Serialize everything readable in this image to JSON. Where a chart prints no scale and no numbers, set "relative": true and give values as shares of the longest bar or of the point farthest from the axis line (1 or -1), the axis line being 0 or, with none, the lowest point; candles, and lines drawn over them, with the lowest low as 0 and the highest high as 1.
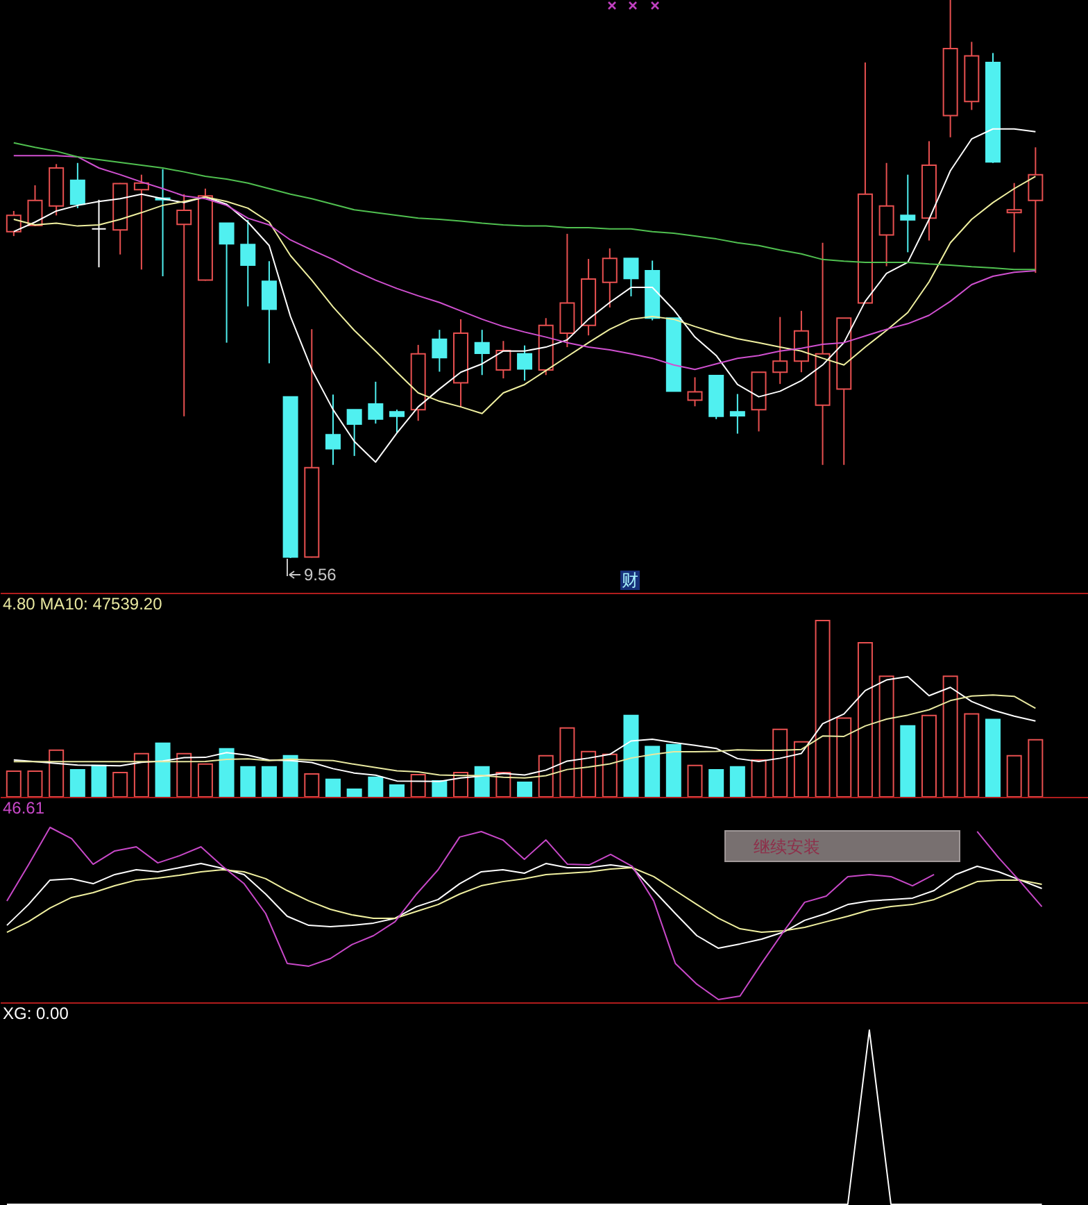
{
  "chart_data": [
    {
      "type": "candlestick",
      "relative": true,
      "categories": [
        null,
        null,
        null,
        null,
        null,
        null,
        null,
        null,
        null,
        null,
        null,
        null,
        null,
        null,
        null,
        null,
        null,
        null,
        null,
        null,
        null,
        null,
        null,
        null,
        null,
        null,
        null,
        null,
        null,
        null,
        null,
        null,
        null,
        null,
        null,
        null,
        null,
        null,
        null,
        null,
        null,
        null,
        null,
        null,
        null,
        null,
        null,
        null,
        null
      ],
      "ohlc": [
        [
          0.585,
          0.622,
          0.577,
          0.614
        ],
        [
          0.596,
          0.668,
          0.595,
          0.641
        ],
        [
          0.631,
          0.706,
          0.614,
          0.699
        ],
        [
          0.677,
          0.708,
          0.627,
          0.634
        ],
        [
          0.59,
          0.642,
          0.521,
          0.59
        ],
        [
          0.588,
          0.672,
          0.544,
          0.671
        ],
        [
          0.66,
          0.687,
          0.517,
          0.672
        ],
        [
          0.645,
          0.697,
          0.505,
          0.642
        ],
        [
          0.598,
          0.652,
          0.254,
          0.623
        ],
        [
          0.498,
          0.662,
          0.497,
          0.649
        ],
        [
          0.6,
          0.6,
          0.386,
          0.563
        ],
        [
          0.562,
          0.606,
          0.451,
          0.525
        ],
        [
          0.496,
          0.532,
          0.349,
          0.446
        ],
        [
          0.289,
          0.289,
          0,
          0.002
        ],
        [
          0.002,
          0.41,
          0.001,
          0.162
        ],
        [
          0.221,
          0.293,
          0.167,
          0.196
        ],
        [
          0.266,
          0.266,
          0.183,
          0.24
        ],
        [
          0.276,
          0.316,
          0.241,
          0.249
        ],
        [
          0.262,
          0.266,
          0.225,
          0.254
        ],
        [
          0.266,
          0.382,
          0.246,
          0.366
        ],
        [
          0.392,
          0.409,
          0.334,
          0.359
        ],
        [
          0.314,
          0.428,
          0.27,
          0.403
        ],
        [
          0.386,
          0.409,
          0.328,
          0.367
        ],
        [
          0.337,
          0.389,
          0.322,
          0.372
        ],
        [
          0.366,
          0.381,
          0.318,
          0.339
        ],
        [
          0.337,
          0.43,
          0.328,
          0.417
        ],
        [
          0.403,
          0.581,
          0.378,
          0.457
        ],
        [
          0.417,
          0.536,
          0.399,
          0.5
        ],
        [
          0.494,
          0.555,
          0.449,
          0.537
        ],
        [
          0.537,
          0.537,
          0.469,
          0.501
        ],
        [
          0.515,
          0.533,
          0.426,
          0.43
        ],
        [
          0.43,
          0.43,
          0.299,
          0.299
        ],
        [
          0.283,
          0.324,
          0.272,
          0.298
        ],
        [
          0.327,
          0.327,
          0.249,
          0.254
        ],
        [
          0.262,
          0.294,
          0.223,
          0.255
        ],
        [
          0.266,
          0.333,
          0.227,
          0.333
        ],
        [
          0.333,
          0.432,
          0.312,
          0.353
        ],
        [
          0.353,
          0.443,
          0.333,
          0.407
        ],
        [
          0.274,
          0.565,
          0.167,
          0.366
        ],
        [
          0.303,
          0.43,
          0.167,
          0.43
        ],
        [
          0.457,
          0.888,
          0.457,
          0.652
        ],
        [
          0.579,
          0.708,
          0.523,
          0.631
        ],
        [
          0.614,
          0.687,
          0.548,
          0.606
        ],
        [
          0.609,
          0.747,
          0.569,
          0.704
        ],
        [
          0.793,
          1,
          0.754,
          0.913
        ],
        [
          0.818,
          0.925,
          0.803,
          0.9
        ],
        [
          0.888,
          0.905,
          0.708,
          0.71
        ],
        [
          0.619,
          0.672,
          0.548,
          0.624
        ],
        [
          0.641,
          0.736,
          0.511,
          0.687
        ]
      ],
      "colors": [
        "#e85050",
        "#e85050",
        "#e85050",
        "#50f0f0",
        "#ffffff",
        "#e85050",
        "#e85050",
        "#50f0f0",
        "#e85050",
        "#e85050",
        "#50f0f0",
        "#50f0f0",
        "#50f0f0",
        "#50f0f0",
        "#e85050",
        "#50f0f0",
        "#50f0f0",
        "#50f0f0",
        "#50f0f0",
        "#e85050",
        "#50f0f0",
        "#e85050",
        "#50f0f0",
        "#e85050",
        "#50f0f0",
        "#e85050",
        "#e85050",
        "#e85050",
        "#e85050",
        "#50f0f0",
        "#50f0f0",
        "#50f0f0",
        "#e85050",
        "#50f0f0",
        "#50f0f0",
        "#e85050",
        "#e85050",
        "#e85050",
        "#e85050",
        "#e85050",
        "#e85050",
        "#e85050",
        "#50f0f0",
        "#e85050",
        "#e85050",
        "#e85050",
        "#50f0f0",
        "#e85050",
        "#e85050"
      ],
      "series": [
        {
          "type": "line",
          "color": "#ffffff",
          "values": [
            0.585,
            0.602,
            0.622,
            0.632,
            0.639,
            0.644,
            0.652,
            0.644,
            0.637,
            0.647,
            0.634,
            0.602,
            0.56,
            0.433,
            0.338,
            0.266,
            0.209,
            0.172,
            0.224,
            0.271,
            0.303,
            0.333,
            0.348,
            0.371,
            0.371,
            0.378,
            0.391,
            0.428,
            0.458,
            0.485,
            0.485,
            0.445,
            0.396,
            0.363,
            0.311,
            0.289,
            0.299,
            0.318,
            0.346,
            0.386,
            0.46,
            0.51,
            0.53,
            0.607,
            0.694,
            0.751,
            0.769,
            0.769,
            0.764
          ]
        },
        {
          "type": "line",
          "color": "#f0f0a0",
          "values": [
            0.607,
            0.597,
            0.6,
            0.595,
            0.597,
            0.607,
            0.619,
            0.632,
            0.639,
            0.647,
            0.639,
            0.627,
            0.602,
            0.542,
            0.498,
            0.45,
            0.408,
            0.371,
            0.333,
            0.296,
            0.281,
            0.271,
            0.259,
            0.296,
            0.311,
            0.336,
            0.361,
            0.386,
            0.41,
            0.428,
            0.433,
            0.428,
            0.415,
            0.403,
            0.393,
            0.386,
            0.378,
            0.371,
            0.358,
            0.346,
            0.378,
            0.408,
            0.44,
            0.495,
            0.565,
            0.607,
            0.637,
            0.662,
            0.684
          ]
        },
        {
          "type": "line",
          "color": "#d050d0",
          "values": [
            0.721,
            0.721,
            0.721,
            0.719,
            0.699,
            0.687,
            0.674,
            0.662,
            0.649,
            0.644,
            0.632,
            0.609,
            0.597,
            0.57,
            0.552,
            0.535,
            0.515,
            0.498,
            0.483,
            0.47,
            0.458,
            0.443,
            0.428,
            0.415,
            0.405,
            0.396,
            0.386,
            0.378,
            0.373,
            0.366,
            0.358,
            0.346,
            0.338,
            0.348,
            0.358,
            0.363,
            0.371,
            0.376,
            0.383,
            0.386,
            0.398,
            0.41,
            0.42,
            0.435,
            0.46,
            0.49,
            0.505,
            0.512,
            0.515
          ]
        },
        {
          "type": "line",
          "color": "#50c050",
          "values": [
            0.744,
            0.736,
            0.729,
            0.719,
            0.714,
            0.709,
            0.704,
            0.699,
            0.692,
            0.684,
            0.679,
            0.672,
            0.662,
            0.652,
            0.644,
            0.634,
            0.624,
            0.619,
            0.614,
            0.609,
            0.607,
            0.604,
            0.6,
            0.597,
            0.595,
            0.595,
            0.592,
            0.592,
            0.59,
            0.59,
            0.585,
            0.582,
            0.577,
            0.572,
            0.565,
            0.56,
            0.552,
            0.545,
            0.535,
            0.532,
            0.53,
            0.53,
            0.53,
            0.527,
            0.525,
            0.522,
            0.52,
            0.517,
            0.517
          ]
        }
      ],
      "annotations": [
        "9.56",
        "财"
      ]
    },
    {
      "type": "bar",
      "relative": true,
      "title": "4.80 MA10: 47539.20",
      "categories": [
        null,
        null,
        null,
        null,
        null,
        null,
        null,
        null,
        null,
        null,
        null,
        null,
        null,
        null,
        null,
        null,
        null,
        null,
        null,
        null,
        null,
        null,
        null,
        null,
        null,
        null,
        null,
        null,
        null,
        null,
        null,
        null,
        null,
        null,
        null,
        null,
        null,
        null,
        null,
        null,
        null,
        null,
        null,
        null,
        null,
        null,
        null,
        null,
        null
      ],
      "series": [
        {
          "colors": [
            "#e85050",
            "#e85050",
            "#e85050",
            "#50f0f0",
            "#50f0f0",
            "#e85050",
            "#e85050",
            "#50f0f0",
            "#e85050",
            "#e85050",
            "#50f0f0",
            "#50f0f0",
            "#50f0f0",
            "#50f0f0",
            "#e85050",
            "#50f0f0",
            "#50f0f0",
            "#50f0f0",
            "#50f0f0",
            "#e85050",
            "#50f0f0",
            "#e85050",
            "#50f0f0",
            "#e85050",
            "#50f0f0",
            "#e85050",
            "#e85050",
            "#e85050",
            "#e85050",
            "#50f0f0",
            "#50f0f0",
            "#50f0f0",
            "#e85050",
            "#50f0f0",
            "#50f0f0",
            "#e85050",
            "#e85050",
            "#e85050",
            "#e85050",
            "#e85050",
            "#e85050",
            "#e85050",
            "#50f0f0",
            "#e85050",
            "#e85050",
            "#e85050",
            "#50f0f0",
            "#e85050",
            "#e85050"
          ],
          "values": [
            0.146,
            0.146,
            0.265,
            0.154,
            0.178,
            0.138,
            0.245,
            0.304,
            0.245,
            0.186,
            0.273,
            0.17,
            0.17,
            0.233,
            0.13,
            0.099,
            0.043,
            0.111,
            0.067,
            0.126,
            0.091,
            0.138,
            0.17,
            0.138,
            0.083,
            0.233,
            0.391,
            0.257,
            0.241,
            0.462,
            0.285,
            0.296,
            0.178,
            0.154,
            0.17,
            0.209,
            0.383,
            0.312,
            1,
            0.447,
            0.874,
            0.684,
            0.403,
            0.462,
            0.684,
            0.47,
            0.439,
            0.233,
            0.324
          ]
        },
        {
          "type": "line",
          "color": "#ffffff",
          "values": [
            0.21,
            0.2,
            0.19,
            0.18,
            0.178,
            0.176,
            0.196,
            0.204,
            0.222,
            0.224,
            0.251,
            0.236,
            0.209,
            0.206,
            0.195,
            0.16,
            0.135,
            0.123,
            0.09,
            0.089,
            0.088,
            0.107,
            0.118,
            0.133,
            0.124,
            0.152,
            0.203,
            0.22,
            0.241,
            0.317,
            0.327,
            0.308,
            0.292,
            0.275,
            0.217,
            0.201,
            0.219,
            0.246,
            0.415,
            0.47,
            0.603,
            0.663,
            0.682,
            0.574,
            0.621,
            0.541,
            0.492,
            0.458,
            0.43
          ]
        },
        {
          "type": "line",
          "color": "#e8e8a0",
          "values": [
            0.2,
            0.2,
            0.2,
            0.2,
            0.2,
            0.2,
            0.2,
            0.2,
            0.2,
            0.201,
            0.213,
            0.216,
            0.206,
            0.214,
            0.209,
            0.206,
            0.185,
            0.166,
            0.148,
            0.142,
            0.124,
            0.121,
            0.121,
            0.111,
            0.107,
            0.12,
            0.155,
            0.169,
            0.187,
            0.22,
            0.24,
            0.256,
            0.256,
            0.258,
            0.267,
            0.264,
            0.264,
            0.269,
            0.345,
            0.343,
            0.402,
            0.441,
            0.464,
            0.494,
            0.546,
            0.572,
            0.578,
            0.57,
            0.502
          ]
        }
      ]
    },
    {
      "type": "line",
      "relative": true,
      "title": "46.61",
      "categories": [
        null,
        null,
        null,
        null,
        null,
        null,
        null,
        null,
        null,
        null,
        null,
        null,
        null,
        null,
        null,
        null,
        null,
        null,
        null,
        null,
        null,
        null,
        null,
        null,
        null,
        null,
        null,
        null,
        null,
        null,
        null,
        null,
        null,
        null,
        null,
        null,
        null,
        null,
        null,
        null,
        null,
        null,
        null,
        null,
        null,
        null,
        null,
        null,
        null
      ],
      "series": [
        {
          "color": "#ffffff",
          "values": [
            0.431,
            0.552,
            0.694,
            0.702,
            0.673,
            0.726,
            0.754,
            0.742,
            0.766,
            0.79,
            0.762,
            0.726,
            0.613,
            0.484,
            0.431,
            0.423,
            0.431,
            0.444,
            0.472,
            0.54,
            0.581,
            0.673,
            0.742,
            0.754,
            0.734,
            0.79,
            0.766,
            0.766,
            0.782,
            0.766,
            0.633,
            0.5,
            0.371,
            0.298,
            0.323,
            0.351,
            0.391,
            0.46,
            0.5,
            0.552,
            0.573,
            0.581,
            0.589,
            0.633,
            0.726,
            0.774,
            0.742,
            0.694,
            0.645
          ]
        },
        {
          "color": "#f0f0a0",
          "values": [
            0.391,
            0.452,
            0.532,
            0.593,
            0.621,
            0.661,
            0.694,
            0.706,
            0.722,
            0.742,
            0.754,
            0.742,
            0.702,
            0.633,
            0.573,
            0.524,
            0.492,
            0.472,
            0.472,
            0.512,
            0.552,
            0.613,
            0.661,
            0.685,
            0.702,
            0.726,
            0.734,
            0.742,
            0.758,
            0.766,
            0.714,
            0.633,
            0.552,
            0.472,
            0.411,
            0.391,
            0.399,
            0.419,
            0.452,
            0.484,
            0.52,
            0.54,
            0.552,
            0.581,
            0.633,
            0.685,
            0.694,
            0.694,
            0.669
          ]
        },
        {
          "color": "#c848c8",
          "values": [
            0.573,
            0.782,
            1,
            0.935,
            0.786,
            0.863,
            0.887,
            0.794,
            0.835,
            0.887,
            0.774,
            0.673,
            0.5,
            0.21,
            0.194,
            0.238,
            0.319,
            0.371,
            0.452,
            0.613,
            0.754,
            0.944,
            0.976,
            0.927,
            0.815,
            0.927,
            0.786,
            0.782,
            0.843,
            0.774,
            0.573,
            0.21,
            0.089,
            0,
            0.02,
            0.21,
            0.391,
            0.565,
            0.601,
            0.714,
            0.726,
            0.714,
            0.661,
            0.726,
            null,
            0.976,
            0.823,
            0.685,
            0.54
          ]
        }
      ],
      "annotations": [
        "继续安装"
      ]
    },
    {
      "type": "line",
      "relative": true,
      "title": "XG: 0.00",
      "categories": [
        null,
        null,
        null,
        null,
        null,
        null,
        null,
        null,
        null,
        null,
        null,
        null,
        null,
        null,
        null,
        null,
        null,
        null,
        null,
        null,
        null,
        null,
        null,
        null,
        null,
        null,
        null,
        null,
        null,
        null,
        null,
        null,
        null,
        null,
        null,
        null,
        null,
        null,
        null,
        null,
        null,
        null,
        null,
        null,
        null,
        null,
        null,
        null,
        null
      ],
      "series": [
        {
          "color": "#ffffff",
          "values": [
            0,
            0,
            0,
            0,
            0,
            0,
            0,
            0,
            0,
            0,
            0,
            0,
            0,
            0,
            0,
            0,
            0,
            0,
            0,
            0,
            0,
            0,
            0,
            0,
            0,
            0,
            0,
            0,
            0,
            0,
            0,
            0,
            0,
            0,
            0,
            0,
            0,
            0,
            0,
            0,
            1,
            0,
            0,
            0,
            0,
            0,
            0,
            0,
            0
          ]
        }
      ]
    }
  ]
}
